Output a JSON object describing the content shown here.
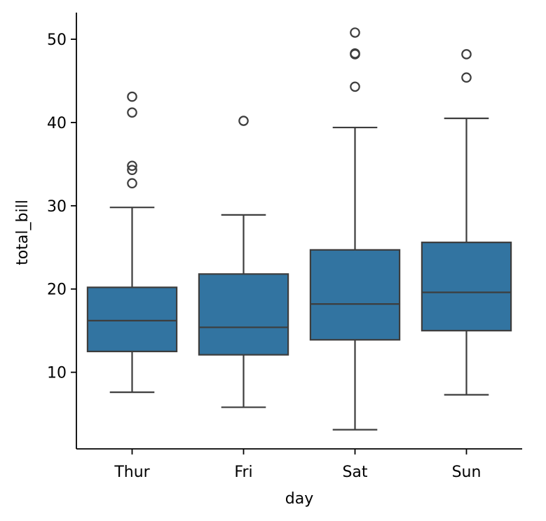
{
  "chart_data": {
    "type": "box",
    "xlabel": "day",
    "ylabel": "total_bill",
    "ylim": [
      0.8,
      53.2
    ],
    "yticks": [
      10,
      20,
      30,
      40,
      50
    ],
    "categories": [
      "Thur",
      "Fri",
      "Sat",
      "Sun"
    ],
    "boxes": [
      {
        "category": "Thur",
        "whisker_low": 7.6,
        "q1": 12.5,
        "median": 16.2,
        "q3": 20.2,
        "whisker_high": 29.8,
        "outliers": [
          32.7,
          34.3,
          34.8,
          41.2,
          43.1
        ]
      },
      {
        "category": "Fri",
        "whisker_low": 5.8,
        "q1": 12.1,
        "median": 15.4,
        "q3": 21.8,
        "whisker_high": 28.9,
        "outliers": [
          40.2
        ]
      },
      {
        "category": "Sat",
        "whisker_low": 3.1,
        "q1": 13.9,
        "median": 18.2,
        "q3": 24.7,
        "whisker_high": 39.4,
        "outliers": [
          44.3,
          48.2,
          48.3,
          50.8
        ]
      },
      {
        "category": "Sun",
        "whisker_low": 7.3,
        "q1": 15.0,
        "median": 19.6,
        "q3": 25.6,
        "whisker_high": 40.5,
        "outliers": [
          45.4,
          48.2
        ]
      }
    ],
    "colors": {
      "box_fill": "#3274a1",
      "line": "#3d3d3d",
      "axis": "#000000"
    },
    "grid": false
  }
}
